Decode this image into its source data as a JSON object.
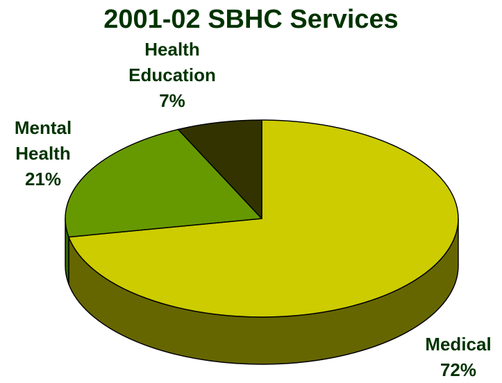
{
  "chart_data": {
    "type": "pie",
    "title": "2001-02 SBHC Services",
    "slices": [
      {
        "label_lines": [
          "Medical"
        ],
        "value": 72,
        "pct_label": "72%",
        "color": "#cccc00",
        "side_color": "#666600"
      },
      {
        "label_lines": [
          "Mental",
          "Health"
        ],
        "value": 21,
        "pct_label": "21%",
        "color": "#669900",
        "side_color": "#336600"
      },
      {
        "label_lines": [
          "Health",
          "Education"
        ],
        "value": 7,
        "pct_label": "7%",
        "color": "#333300",
        "side_color": "#1a1a00"
      }
    ],
    "style": "3d",
    "legend": "none"
  }
}
